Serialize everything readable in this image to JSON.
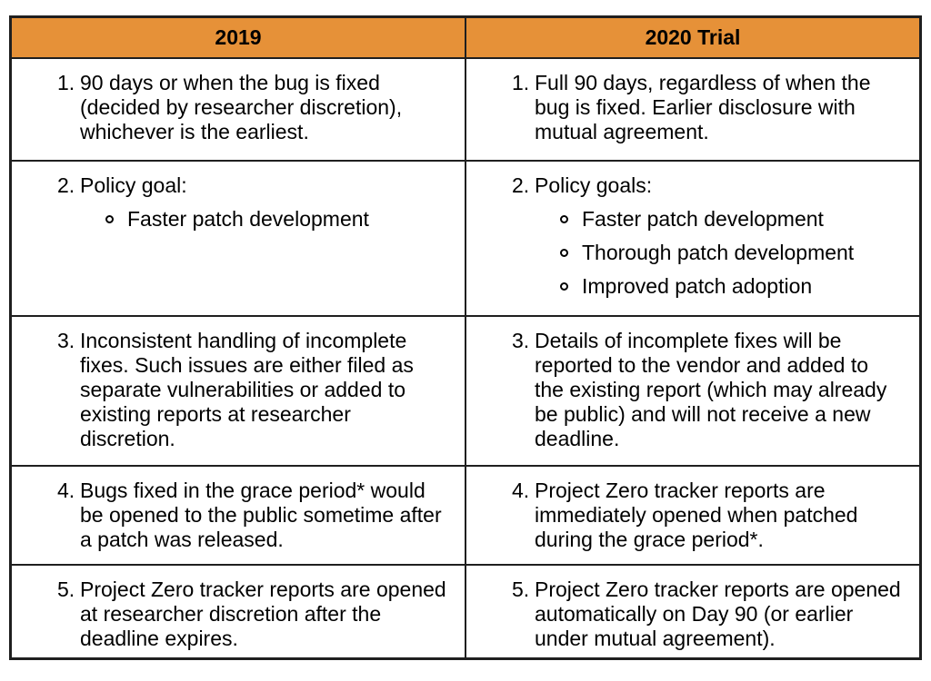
{
  "colors": {
    "header_bg": "#E69138",
    "border": "#1f1f1f",
    "text": "#000000",
    "page_bg": "#ffffff"
  },
  "table": {
    "headers": [
      {
        "label": "2019"
      },
      {
        "label": "2020 Trial"
      }
    ],
    "rows": [
      {
        "cells": [
          {
            "num": "1.",
            "text": "90 days or when the bug is fixed (decided by researcher discretion), whichever is the earliest.",
            "bullets": []
          },
          {
            "num": "1.",
            "text": "Full 90 days, regardless of when the bug is fixed. Earlier disclosure with mutual agreement.",
            "bullets": []
          }
        ]
      },
      {
        "cells": [
          {
            "num": "2.",
            "text": "Policy goal:",
            "bullets": [
              "Faster patch development"
            ]
          },
          {
            "num": "2.",
            "text": "Policy goals:",
            "bullets": [
              "Faster patch development",
              "Thorough patch development",
              "Improved patch adoption"
            ]
          }
        ]
      },
      {
        "cells": [
          {
            "num": "3.",
            "text": "Inconsistent handling of incomplete fixes. Such issues are either filed as separate vulnerabilities or added to existing reports at researcher discretion.",
            "bullets": []
          },
          {
            "num": "3.",
            "text": "Details of incomplete fixes will be reported to the vendor and added to the existing report (which may already be public) and will not receive a new deadline.",
            "bullets": []
          }
        ]
      },
      {
        "cells": [
          {
            "num": "4.",
            "text": "Bugs fixed in the grace period* would be opened to the public sometime after a patch was released.",
            "bullets": []
          },
          {
            "num": "4.",
            "text": "Project Zero tracker reports are immediately opened when patched during the grace period*.",
            "bullets": []
          }
        ]
      },
      {
        "cells": [
          {
            "num": "5.",
            "text": "Project Zero tracker reports are opened at researcher discretion after the deadline expires.",
            "bullets": []
          },
          {
            "num": "5.",
            "text": "Project Zero tracker reports are opened automatically on Day 90 (or earlier under mutual agreement).",
            "bullets": []
          }
        ]
      }
    ]
  }
}
